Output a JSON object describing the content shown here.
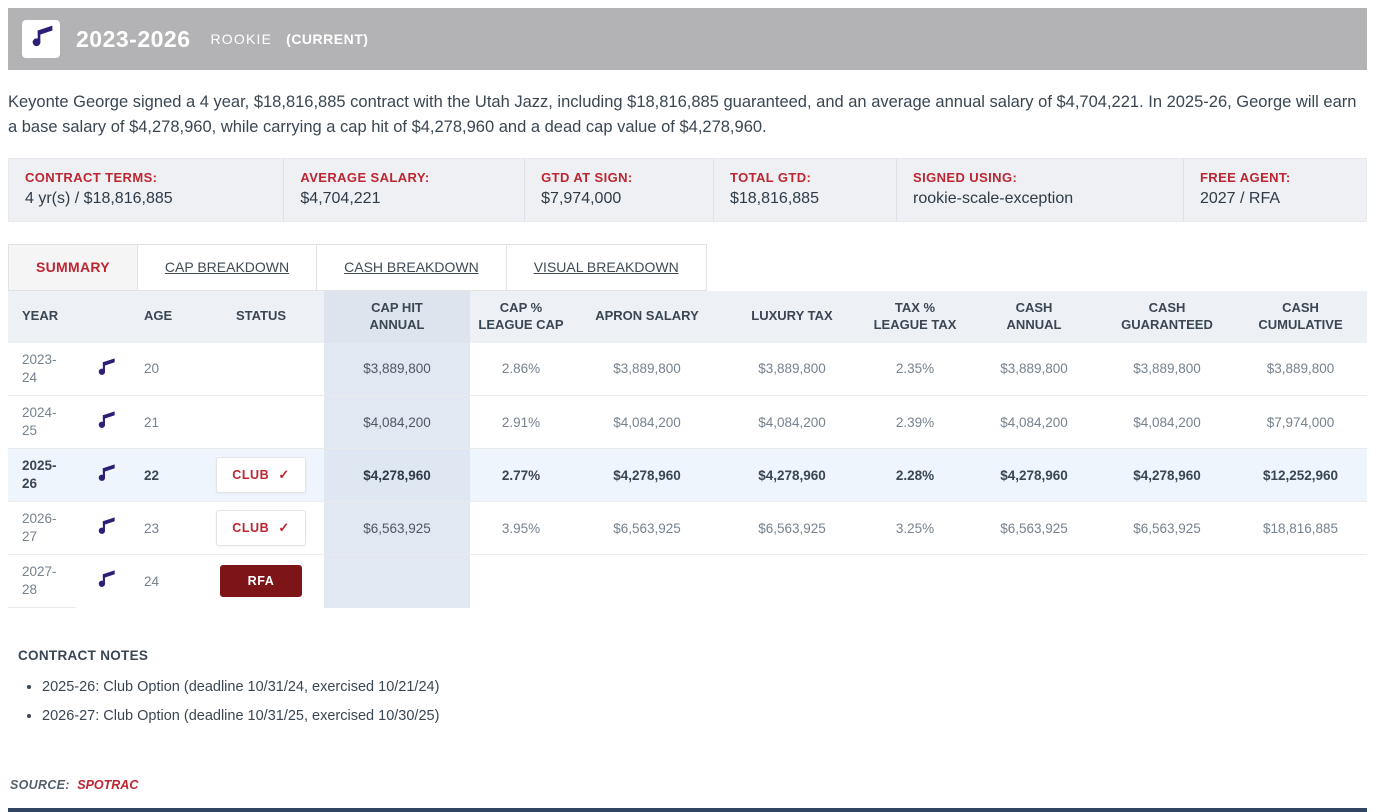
{
  "header": {
    "title": "2023-2026",
    "type": "ROOKIE",
    "current": "(CURRENT)",
    "team_icon": "music-note-icon"
  },
  "intro_text": "Keyonte George signed a 4 year, $18,816,885 contract with the Utah Jazz, including $18,816,885 guaranteed, and an average annual salary of $4,704,221. In 2025-26, George will earn a base salary of $4,278,960, while carrying a cap hit of $4,278,960 and a dead cap value of $4,278,960.",
  "terms": [
    {
      "label": "CONTRACT TERMS:",
      "value": "4 yr(s) / $18,816,885"
    },
    {
      "label": "AVERAGE SALARY:",
      "value": "$4,704,221"
    },
    {
      "label": "GTD AT SIGN:",
      "value": "$7,974,000"
    },
    {
      "label": "TOTAL GTD:",
      "value": "$18,816,885"
    },
    {
      "label": "SIGNED USING:",
      "value": "rookie-scale-exception"
    },
    {
      "label": "FREE AGENT:",
      "value": "2027 / RFA"
    }
  ],
  "tabs": [
    {
      "label": "SUMMARY",
      "active": true
    },
    {
      "label": "CAP BREAKDOWN",
      "active": false
    },
    {
      "label": "CASH BREAKDOWN",
      "active": false
    },
    {
      "label": "VISUAL BREAKDOWN",
      "active": false
    }
  ],
  "table": {
    "headers": [
      {
        "lines": [
          "YEAR"
        ]
      },
      {
        "lines": [
          ""
        ]
      },
      {
        "lines": [
          "AGE"
        ]
      },
      {
        "lines": [
          "STATUS"
        ]
      },
      {
        "lines": [
          "CAP HIT",
          "ANNUAL"
        ]
      },
      {
        "lines": [
          "CAP %",
          "LEAGUE CAP"
        ]
      },
      {
        "lines": [
          "APRON SALARY"
        ]
      },
      {
        "lines": [
          "LUXURY TAX"
        ]
      },
      {
        "lines": [
          "TAX %",
          "LEAGUE TAX"
        ]
      },
      {
        "lines": [
          "CASH",
          "ANNUAL"
        ]
      },
      {
        "lines": [
          "CASH",
          "GUARANTEED"
        ]
      },
      {
        "lines": [
          "CASH",
          "CUMULATIVE"
        ]
      }
    ],
    "rows": [
      {
        "year1": "2023-",
        "year2": "24",
        "age": "20",
        "status": null,
        "cap_hit": "$3,889,800",
        "cap_pct": "2.86%",
        "apron": "$3,889,800",
        "luxury": "$3,889,800",
        "tax_pct": "2.35%",
        "cash_annual": "$3,889,800",
        "cash_gtd": "$3,889,800",
        "cash_cum": "$3,889,800",
        "highlight": false,
        "last": false
      },
      {
        "year1": "2024-",
        "year2": "25",
        "age": "21",
        "status": null,
        "cap_hit": "$4,084,200",
        "cap_pct": "2.91%",
        "apron": "$4,084,200",
        "luxury": "$4,084,200",
        "tax_pct": "2.39%",
        "cash_annual": "$4,084,200",
        "cash_gtd": "$4,084,200",
        "cash_cum": "$7,974,000",
        "highlight": false,
        "last": false
      },
      {
        "year1": "2025-",
        "year2": "26",
        "age": "22",
        "status": {
          "type": "club",
          "label": "CLUB",
          "check": true
        },
        "cap_hit": "$4,278,960",
        "cap_pct": "2.77%",
        "apron": "$4,278,960",
        "luxury": "$4,278,960",
        "tax_pct": "2.28%",
        "cash_annual": "$4,278,960",
        "cash_gtd": "$4,278,960",
        "cash_cum": "$12,252,960",
        "highlight": true,
        "last": false
      },
      {
        "year1": "2026-",
        "year2": "27",
        "age": "23",
        "status": {
          "type": "club",
          "label": "CLUB",
          "check": true
        },
        "cap_hit": "$6,563,925",
        "cap_pct": "3.95%",
        "apron": "$6,563,925",
        "luxury": "$6,563,925",
        "tax_pct": "3.25%",
        "cash_annual": "$6,563,925",
        "cash_gtd": "$6,563,925",
        "cash_cum": "$18,816,885",
        "highlight": false,
        "last": false
      },
      {
        "year1": "2027-",
        "year2": "28",
        "age": "24",
        "status": {
          "type": "rfa",
          "label": "RFA",
          "check": false
        },
        "cap_hit": "",
        "cap_pct": "",
        "apron": "",
        "luxury": "",
        "tax_pct": "",
        "cash_annual": "",
        "cash_gtd": "",
        "cash_cum": "",
        "highlight": false,
        "last": true
      }
    ]
  },
  "notes": {
    "title": "CONTRACT NOTES",
    "items": [
      "2025-26: Club Option (deadline 10/31/24, exercised 10/21/24)",
      "2026-27: Club Option (deadline 10/31/25, exercised 10/30/25)"
    ]
  },
  "source": {
    "label": "SOURCE:",
    "link": "SPOTRAC"
  },
  "icons": {
    "team_logo": "music-note-icon",
    "status_check": "check-icon"
  },
  "colors": {
    "accent_red": "#bd2531",
    "team_purple": "#2b2076",
    "rfa_maroon": "#7d1418",
    "banner_gray": "#b3b3b5",
    "highlight_row": "#eef5fc",
    "caphit_column": "#e2e8f1"
  }
}
